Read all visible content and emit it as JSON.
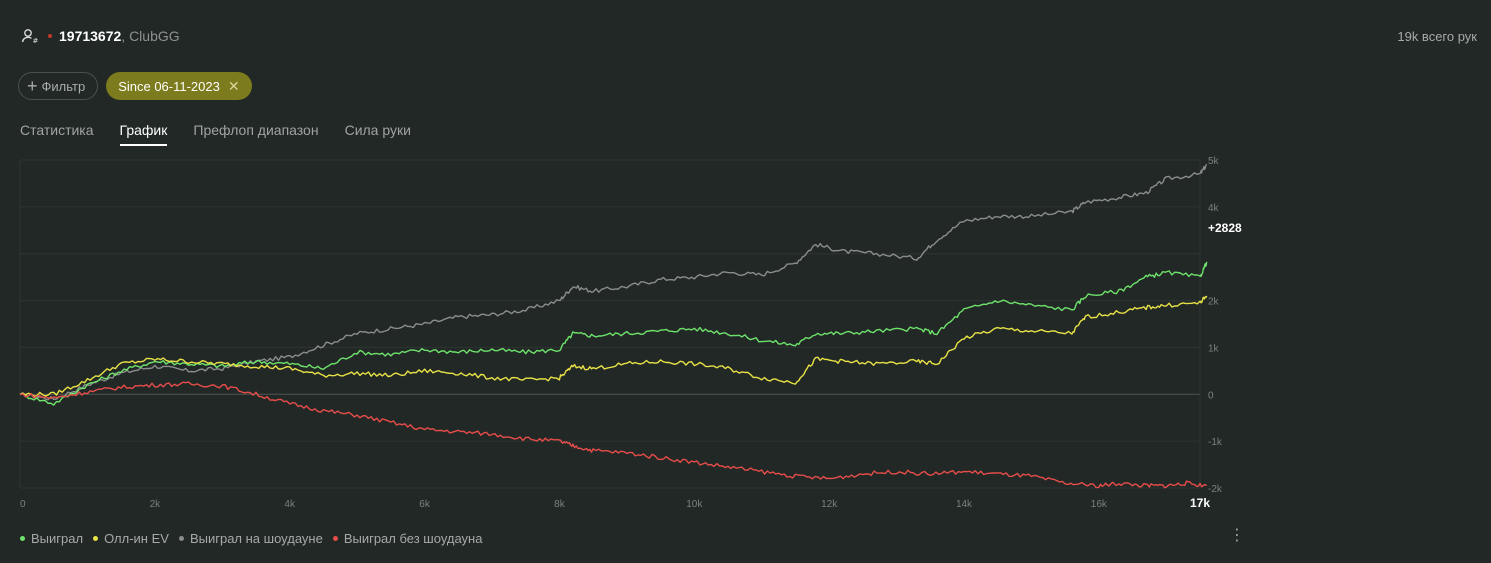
{
  "header": {
    "player_id": "19713672",
    "room": ", ClubGG",
    "total_hands": "19k всего рук",
    "user_icon": "user-hash-icon"
  },
  "filters": {
    "add_label": "Фильтр",
    "date_chip": "Since 06-11-2023"
  },
  "tabs": [
    {
      "label": "Статистика"
    },
    {
      "label": "График",
      "active": true
    },
    {
      "label": "Префлоп диапазон"
    },
    {
      "label": "Сила руки"
    }
  ],
  "chart_data": {
    "type": "line",
    "x_ticks": [
      "0",
      "2k",
      "4k",
      "6k",
      "8k",
      "10k",
      "12k",
      "14k",
      "16k"
    ],
    "x_end_label": "17k",
    "y_ticks": [
      "5k",
      "4k",
      "",
      "",
      "2k",
      "1k",
      "0",
      "-1k",
      "-2k"
    ],
    "ylim": [
      -2000,
      5000
    ],
    "xlim": [
      0,
      17500
    ],
    "current_value_label": "+2828",
    "series": [
      {
        "name": "Выиграл на шоудауне",
        "color": "#8a8d8b",
        "points": [
          [
            0,
            0
          ],
          [
            500,
            -100
          ],
          [
            1000,
            200
          ],
          [
            1500,
            450
          ],
          [
            2000,
            600
          ],
          [
            2500,
            500
          ],
          [
            3000,
            550
          ],
          [
            3500,
            700
          ],
          [
            4000,
            800
          ],
          [
            4500,
            1050
          ],
          [
            5000,
            1300
          ],
          [
            5500,
            1400
          ],
          [
            6000,
            1500
          ],
          [
            6500,
            1650
          ],
          [
            7000,
            1700
          ],
          [
            7500,
            1800
          ],
          [
            8000,
            2000
          ],
          [
            8200,
            2300
          ],
          [
            8500,
            2200
          ],
          [
            9000,
            2300
          ],
          [
            9500,
            2450
          ],
          [
            10000,
            2500
          ],
          [
            10500,
            2600
          ],
          [
            11000,
            2550
          ],
          [
            11500,
            2800
          ],
          [
            11800,
            3200
          ],
          [
            12200,
            3050
          ],
          [
            12700,
            3000
          ],
          [
            13300,
            2900
          ],
          [
            13600,
            3300
          ],
          [
            14000,
            3700
          ],
          [
            14500,
            3800
          ],
          [
            15000,
            3800
          ],
          [
            15600,
            3900
          ],
          [
            15800,
            4100
          ],
          [
            16300,
            4200
          ],
          [
            16700,
            4300
          ],
          [
            17000,
            4600
          ],
          [
            17500,
            4700
          ],
          [
            17600,
            4900
          ]
        ]
      },
      {
        "name": "Выиграл",
        "color": "#6ee26b",
        "points": [
          [
            0,
            0
          ],
          [
            500,
            -200
          ],
          [
            1000,
            200
          ],
          [
            1500,
            500
          ],
          [
            2000,
            700
          ],
          [
            2500,
            650
          ],
          [
            3000,
            600
          ],
          [
            3500,
            700
          ],
          [
            4000,
            650
          ],
          [
            4500,
            550
          ],
          [
            5000,
            900
          ],
          [
            5500,
            850
          ],
          [
            6000,
            950
          ],
          [
            6500,
            900
          ],
          [
            7000,
            950
          ],
          [
            7500,
            900
          ],
          [
            8000,
            950
          ],
          [
            8200,
            1300
          ],
          [
            8500,
            1250
          ],
          [
            9000,
            1300
          ],
          [
            9500,
            1350
          ],
          [
            10000,
            1400
          ],
          [
            10500,
            1300
          ],
          [
            11000,
            1150
          ],
          [
            11500,
            1050
          ],
          [
            11800,
            1300
          ],
          [
            12200,
            1300
          ],
          [
            12700,
            1350
          ],
          [
            13300,
            1400
          ],
          [
            13600,
            1300
          ],
          [
            14000,
            1800
          ],
          [
            14500,
            2000
          ],
          [
            15000,
            1900
          ],
          [
            15600,
            1800
          ],
          [
            15800,
            2100
          ],
          [
            16300,
            2200
          ],
          [
            16700,
            2500
          ],
          [
            17000,
            2600
          ],
          [
            17500,
            2500
          ],
          [
            17600,
            2828
          ]
        ]
      },
      {
        "name": "Олл-ин EV",
        "color": "#e8e246",
        "points": [
          [
            0,
            0
          ],
          [
            500,
            0
          ],
          [
            1000,
            300
          ],
          [
            1500,
            650
          ],
          [
            2000,
            750
          ],
          [
            2500,
            700
          ],
          [
            3000,
            650
          ],
          [
            3500,
            600
          ],
          [
            4000,
            550
          ],
          [
            4500,
            400
          ],
          [
            5000,
            450
          ],
          [
            5500,
            400
          ],
          [
            6000,
            500
          ],
          [
            6500,
            450
          ],
          [
            7000,
            350
          ],
          [
            7500,
            300
          ],
          [
            8000,
            350
          ],
          [
            8200,
            600
          ],
          [
            8500,
            550
          ],
          [
            9000,
            650
          ],
          [
            9500,
            700
          ],
          [
            10000,
            650
          ],
          [
            10500,
            550
          ],
          [
            11000,
            350
          ],
          [
            11500,
            250
          ],
          [
            11800,
            750
          ],
          [
            12200,
            700
          ],
          [
            12700,
            650
          ],
          [
            13300,
            700
          ],
          [
            13600,
            650
          ],
          [
            14000,
            1200
          ],
          [
            14500,
            1400
          ],
          [
            15000,
            1350
          ],
          [
            15600,
            1300
          ],
          [
            15800,
            1650
          ],
          [
            16300,
            1750
          ],
          [
            16700,
            1850
          ],
          [
            17000,
            1900
          ],
          [
            17500,
            1950
          ],
          [
            17600,
            2100
          ]
        ]
      },
      {
        "name": "Выиграл без шоудауна",
        "color": "#e64d4a",
        "points": [
          [
            0,
            0
          ],
          [
            500,
            -80
          ],
          [
            1000,
            50
          ],
          [
            1500,
            150
          ],
          [
            2000,
            200
          ],
          [
            2500,
            220
          ],
          [
            3000,
            180
          ],
          [
            3500,
            0
          ],
          [
            4000,
            -200
          ],
          [
            4500,
            -350
          ],
          [
            5000,
            -450
          ],
          [
            5500,
            -600
          ],
          [
            6000,
            -750
          ],
          [
            6500,
            -800
          ],
          [
            7000,
            -850
          ],
          [
            7500,
            -950
          ],
          [
            8000,
            -1000
          ],
          [
            8200,
            -1100
          ],
          [
            8500,
            -1200
          ],
          [
            9000,
            -1250
          ],
          [
            9500,
            -1350
          ],
          [
            10000,
            -1450
          ],
          [
            10500,
            -1550
          ],
          [
            11000,
            -1650
          ],
          [
            11500,
            -1750
          ],
          [
            12000,
            -1800
          ],
          [
            12500,
            -1700
          ],
          [
            13000,
            -1650
          ],
          [
            13500,
            -1700
          ],
          [
            14000,
            -1650
          ],
          [
            14500,
            -1700
          ],
          [
            15000,
            -1750
          ],
          [
            15500,
            -1900
          ],
          [
            16000,
            -1950
          ],
          [
            16300,
            -1900
          ],
          [
            16700,
            -1950
          ],
          [
            17000,
            -1950
          ],
          [
            17300,
            -1900
          ],
          [
            17600,
            -1950
          ]
        ]
      }
    ]
  },
  "legend": [
    {
      "label": "Выиграл",
      "color": "#6ee26b"
    },
    {
      "label": "Олл-ин EV",
      "color": "#e8e246"
    },
    {
      "label": "Выиграл на шоудауне",
      "color": "#8a8d8b"
    },
    {
      "label": "Выиграл без шоудауна",
      "color": "#e64d4a"
    }
  ],
  "menu_icon": "more-vertical-icon"
}
